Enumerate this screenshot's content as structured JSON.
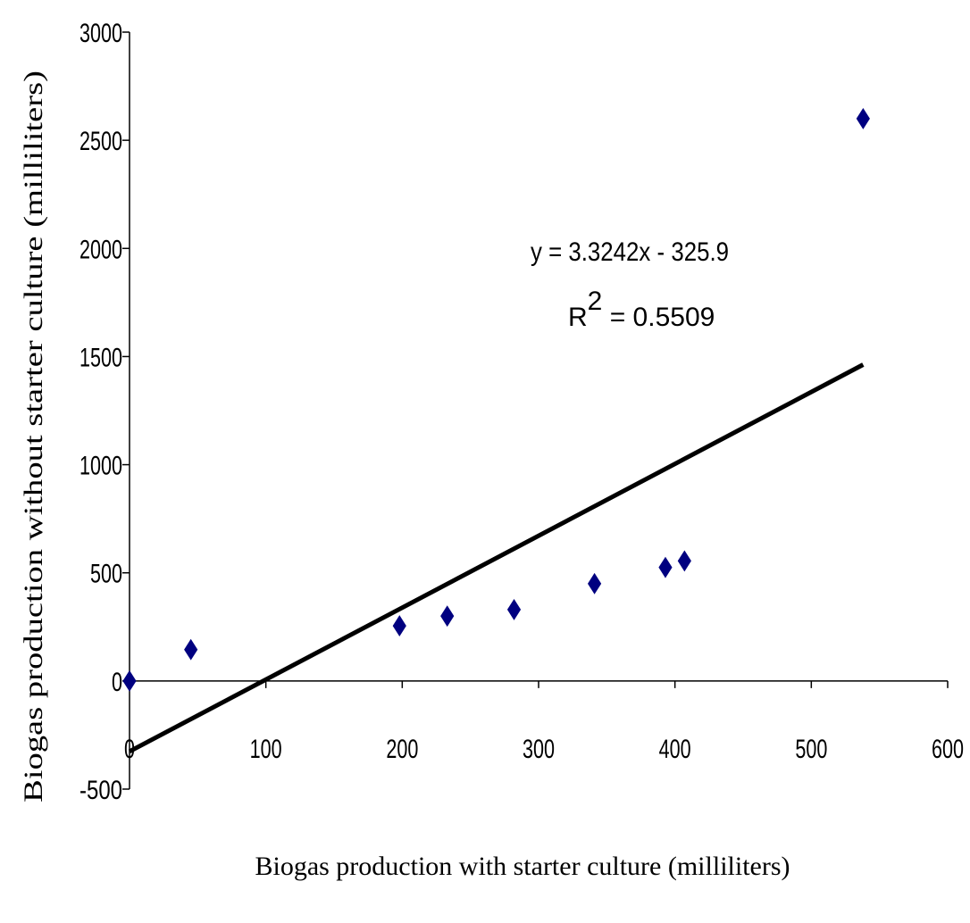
{
  "chart_data": {
    "type": "scatter",
    "xlabel": "Biogas production with starter culture (milliliters)",
    "ylabel": "Biogas   production without starter culture (milliliters)",
    "xlim": [
      0,
      600
    ],
    "ylim": [
      -500,
      3000
    ],
    "x_ticks": [
      "0",
      "100",
      "200",
      "300",
      "400",
      "500",
      "600"
    ],
    "y_ticks": [
      "-500",
      "0",
      "500",
      "1000",
      "1500",
      "2000",
      "2500",
      "3000"
    ],
    "series": [
      {
        "marker": "diamond",
        "color": "#000080",
        "points": [
          {
            "x": 0,
            "y": 0
          },
          {
            "x": 45,
            "y": 145
          },
          {
            "x": 198,
            "y": 255
          },
          {
            "x": 233,
            "y": 300
          },
          {
            "x": 282,
            "y": 330
          },
          {
            "x": 341,
            "y": 450
          },
          {
            "x": 393,
            "y": 525
          },
          {
            "x": 407,
            "y": 555
          },
          {
            "x": 538,
            "y": 2600
          }
        ]
      }
    ],
    "trendline": {
      "type": "linear",
      "slope": 3.3242,
      "intercept": -325.9,
      "x_range": [
        0,
        538
      ],
      "color": "#000000",
      "equation": "y = 3.3242x - 325.9",
      "r2_prefix": "R",
      "r2_sup": "2",
      "r2_suffix": " = 0.5509"
    },
    "grid": false,
    "legend": "none"
  }
}
